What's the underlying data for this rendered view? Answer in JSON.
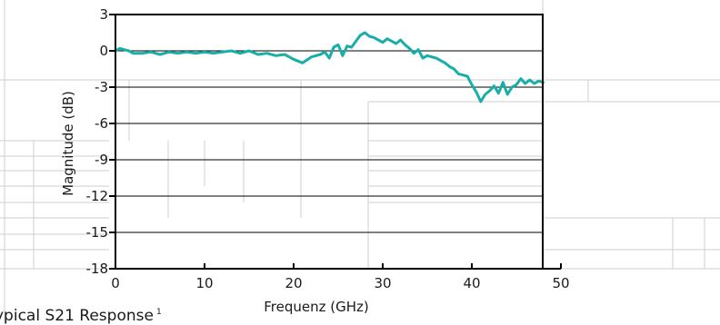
{
  "chart_data": {
    "type": "line",
    "title": "",
    "xlabel": "Frequenz (GHz)",
    "ylabel": "Magnitude (dB)",
    "xlim": [
      0,
      50
    ],
    "ylim": [
      -18,
      3
    ],
    "x_ticks": [
      0,
      10,
      20,
      30,
      40,
      50
    ],
    "x_tick_labels": [
      "0",
      "10",
      "20",
      "30",
      "40",
      "50"
    ],
    "y_ticks": [
      3,
      0,
      -3,
      -6,
      -9,
      -12,
      -15,
      -18
    ],
    "y_tick_labels": [
      "3",
      "0",
      "-3",
      "-6",
      "-9",
      "-12",
      "-15",
      "-18"
    ],
    "grid": "horizontal",
    "series": [
      {
        "color": "#1aaea8",
        "x": [
          0,
          0.5,
          1,
          1.5,
          2,
          3,
          4,
          5,
          6,
          7,
          8,
          9,
          10,
          11,
          12,
          13,
          14,
          15,
          16,
          17,
          18,
          19,
          20,
          21,
          22,
          23,
          23.5,
          24,
          24.5,
          25,
          25.5,
          26,
          26.5,
          27,
          27.5,
          28,
          28.5,
          29,
          29.5,
          30,
          30.5,
          31,
          31.5,
          32,
          32.5,
          33,
          33.5,
          34,
          34.5,
          35,
          35.5,
          36,
          36.5,
          37,
          37.5,
          38,
          38.5,
          39,
          39.5,
          40,
          40.5,
          41,
          41.5,
          42,
          42.5,
          43,
          43.5,
          44,
          44.5,
          45,
          45.5,
          46,
          46.5,
          47,
          47.5,
          48
        ],
        "y": [
          0.0,
          0.2,
          0.1,
          0.0,
          -0.2,
          -0.2,
          -0.1,
          -0.3,
          -0.1,
          -0.2,
          -0.1,
          -0.2,
          -0.1,
          -0.2,
          -0.1,
          0.0,
          -0.2,
          0.0,
          -0.3,
          -0.2,
          -0.4,
          -0.3,
          -0.7,
          -1.0,
          -0.5,
          -0.3,
          -0.1,
          -0.6,
          0.3,
          0.5,
          -0.4,
          0.4,
          0.3,
          0.8,
          1.3,
          1.5,
          1.2,
          1.1,
          0.9,
          0.7,
          1.0,
          0.8,
          0.6,
          0.9,
          0.5,
          0.2,
          -0.2,
          0.1,
          -0.6,
          -0.4,
          -0.5,
          -0.6,
          -0.8,
          -1.0,
          -1.3,
          -1.5,
          -1.9,
          -2.0,
          -2.1,
          -2.8,
          -3.4,
          -4.2,
          -3.6,
          -3.3,
          -2.9,
          -3.5,
          -2.6,
          -3.6,
          -3.0,
          -2.8,
          -2.3,
          -2.7,
          -2.4,
          -2.7,
          -2.5,
          -2.6
        ]
      }
    ]
  },
  "caption": {
    "text": "ypical S21 Response",
    "footnote": "1"
  }
}
